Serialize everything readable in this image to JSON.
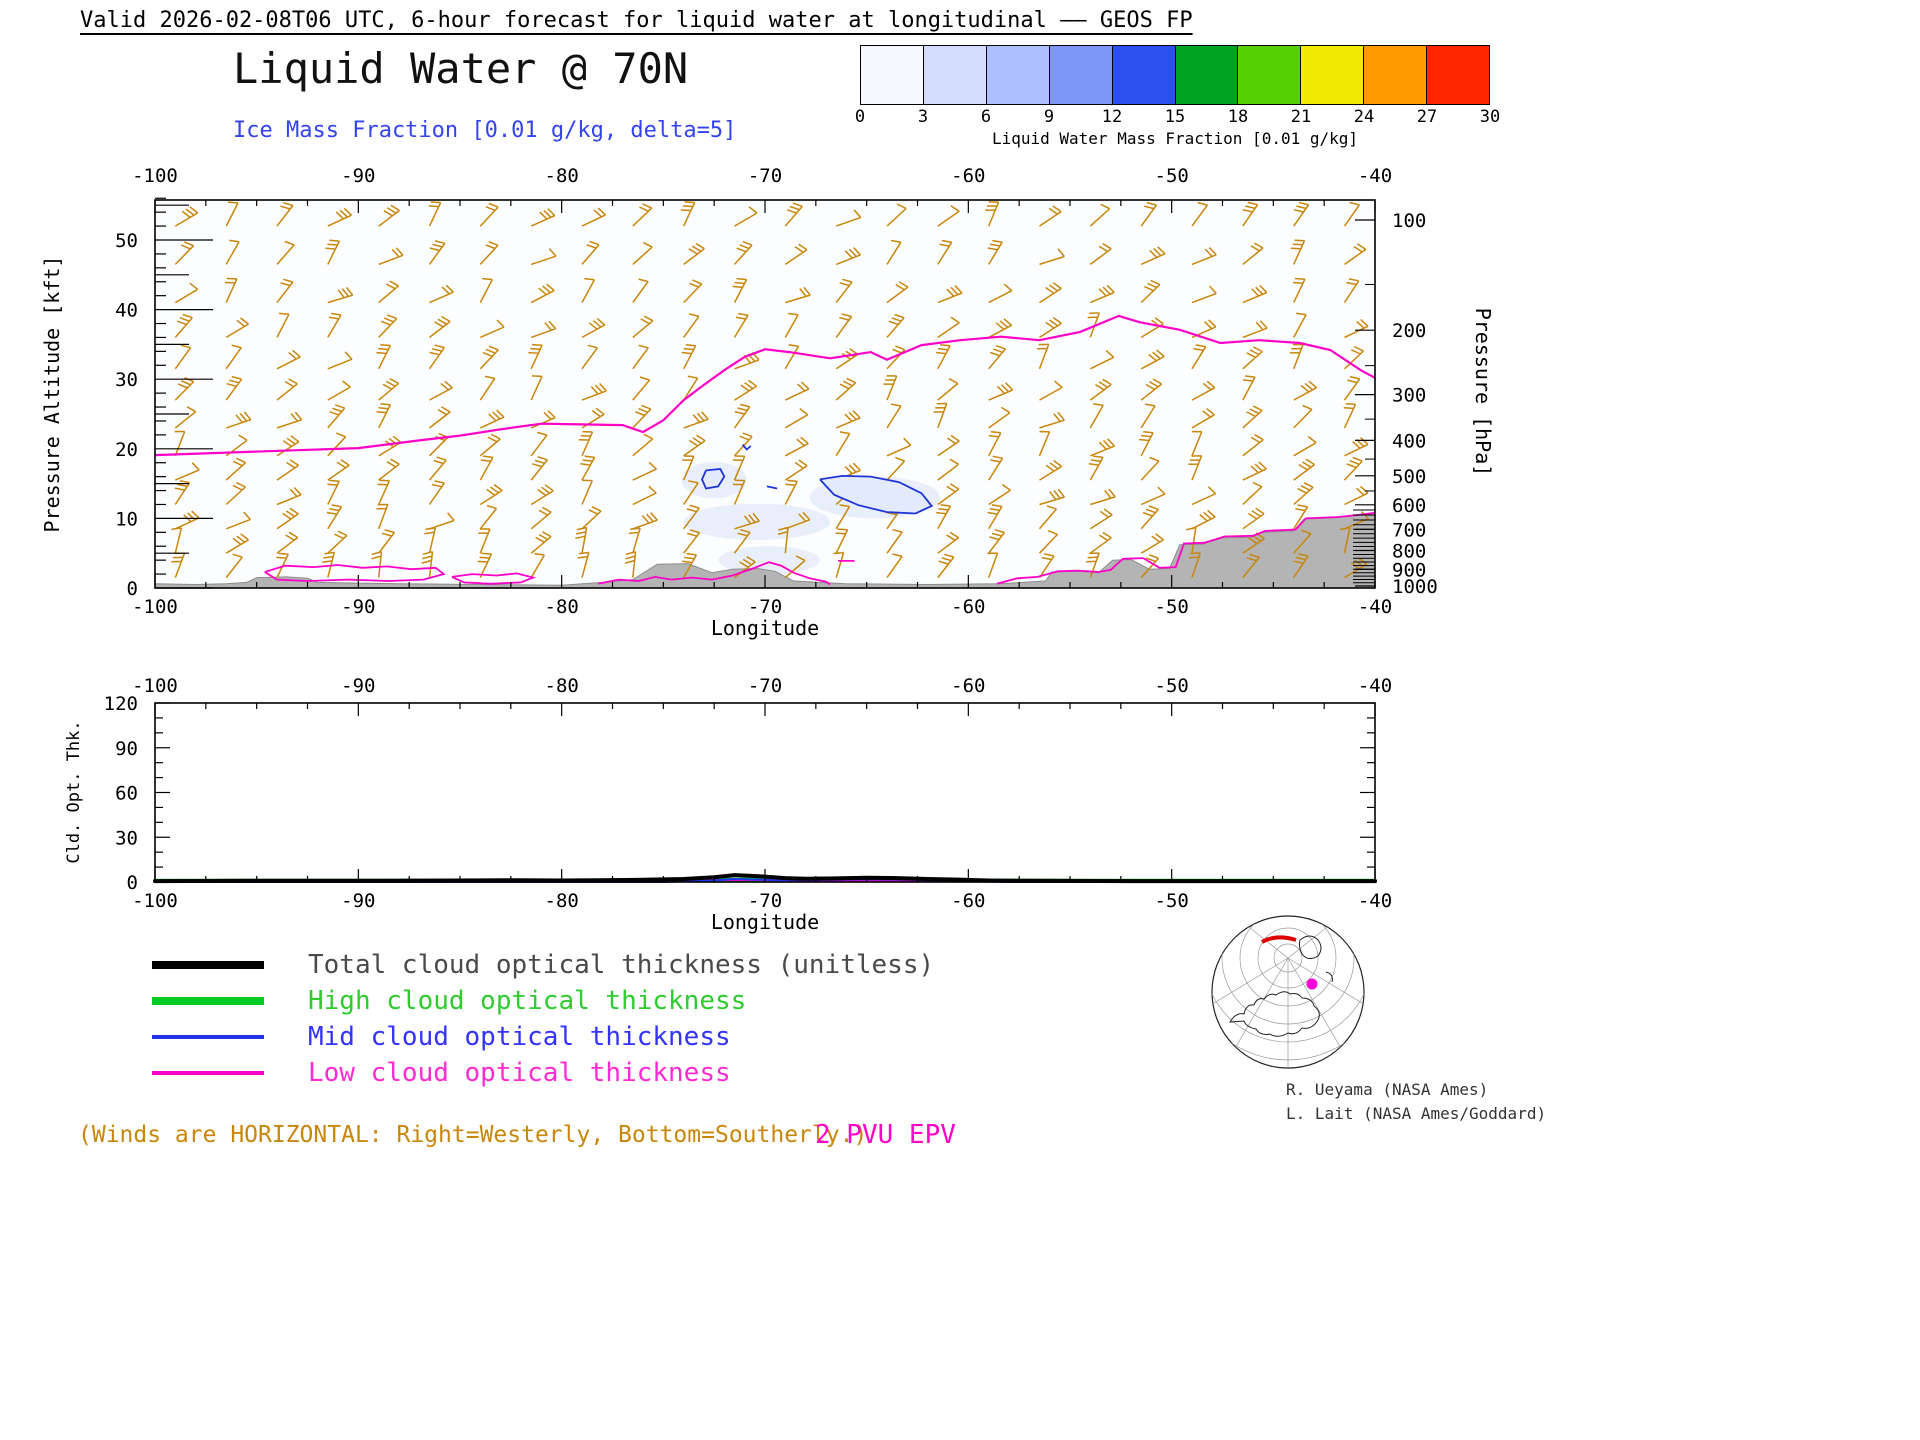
{
  "header": {
    "valid_line": "Valid 2026-02-08T06 UTC, 6-hour forecast for liquid water at longitudinal —— GEOS FP",
    "title": "Liquid Water @ 70N",
    "subtitle": "Ice Mass Fraction [0.01 g/kg, delta=5]",
    "subtitle_color": "#3344ee"
  },
  "colorbar": {
    "caption": "Liquid Water Mass Fraction [0.01 g/kg]",
    "ticks": [
      0,
      3,
      6,
      9,
      12,
      15,
      18,
      21,
      24,
      27,
      30
    ],
    "colors": [
      "#f6f8ff",
      "#d4ddff",
      "#aebfff",
      "#7d97f8",
      "#2c50ef",
      "#00a41e",
      "#55d000",
      "#f2ea00",
      "#ff9b00",
      "#ff2600"
    ]
  },
  "chart_data": [
    {
      "type": "cross_section",
      "title": "Liquid Water @ 70N",
      "xlabel": "Longitude",
      "xlim": [
        -100,
        -40
      ],
      "x_major_ticks": [
        -100,
        -90,
        -80,
        -70,
        -60,
        -50,
        -40
      ],
      "x_minor_step": 2.5,
      "ylabel_left": "Pressure Altitude [kft]",
      "ylim_left_kft": [
        0,
        56
      ],
      "y_major_ticks_left": [
        0,
        10,
        20,
        30,
        40,
        50
      ],
      "ylabel_right": "Pressure [hPa]",
      "y_ticks_right": [
        100,
        200,
        300,
        400,
        500,
        600,
        700,
        800,
        900,
        1000
      ],
      "epv_line_label": "2 PVU EPV",
      "epv_color": "#ff00c8",
      "tropopause_2pvu": [
        [
          -100,
          19.1
        ],
        [
          -97,
          19.4
        ],
        [
          -93,
          19.8
        ],
        [
          -90,
          20.1
        ],
        [
          -87,
          21.2
        ],
        [
          -85,
          21.9
        ],
        [
          -83,
          22.8
        ],
        [
          -81,
          23.6
        ],
        [
          -79,
          23.5
        ],
        [
          -77,
          23.4
        ],
        [
          -76,
          22.4
        ],
        [
          -75,
          24.1
        ],
        [
          -74,
          27.0
        ],
        [
          -73,
          29.2
        ],
        [
          -72,
          31.3
        ],
        [
          -71,
          33.2
        ],
        [
          -70,
          34.3
        ],
        [
          -68.8,
          33.9
        ],
        [
          -66.8,
          33.0
        ],
        [
          -64.8,
          33.9
        ],
        [
          -64,
          32.8
        ],
        [
          -62.3,
          34.9
        ],
        [
          -60.4,
          35.6
        ],
        [
          -58.4,
          36.1
        ],
        [
          -56.5,
          35.6
        ],
        [
          -54.5,
          36.8
        ],
        [
          -52.6,
          39.1
        ],
        [
          -51.6,
          38.2
        ],
        [
          -49.6,
          37.1
        ],
        [
          -47.6,
          35.2
        ],
        [
          -45.7,
          35.6
        ],
        [
          -43.7,
          35.2
        ],
        [
          -42.2,
          34.2
        ],
        [
          -40.7,
          31.3
        ],
        [
          -40,
          30.2
        ]
      ],
      "low_epv_contours": [
        [
          [
            -94.6,
            2.3
          ],
          [
            -93.6,
            3.2
          ],
          [
            -92.2,
            3.0
          ],
          [
            -91.0,
            3.3
          ],
          [
            -89.8,
            2.9
          ],
          [
            -88.6,
            3.1
          ],
          [
            -87.4,
            2.7
          ],
          [
            -86.2,
            2.9
          ],
          [
            -85.8,
            2.0
          ],
          [
            -86.8,
            1.2
          ],
          [
            -88.5,
            1.0
          ],
          [
            -90.5,
            1.2
          ],
          [
            -92.5,
            1.0
          ],
          [
            -94.0,
            1.2
          ],
          [
            -94.6,
            2.3
          ]
        ],
        [
          [
            -85.4,
            1.6
          ],
          [
            -84.4,
            2.0
          ],
          [
            -83.2,
            1.8
          ],
          [
            -82.2,
            2.1
          ],
          [
            -81.4,
            1.5
          ],
          [
            -82.0,
            0.8
          ],
          [
            -83.5,
            0.6
          ],
          [
            -84.8,
            0.8
          ],
          [
            -85.4,
            1.6
          ]
        ],
        [
          [
            -78.2,
            0.6
          ],
          [
            -77.2,
            1.2
          ],
          [
            -76.2,
            1.0
          ],
          [
            -75.4,
            1.6
          ],
          [
            -74.6,
            1.2
          ],
          [
            -73.6,
            1.5
          ],
          [
            -72.6,
            1.2
          ],
          [
            -71.6,
            1.8
          ],
          [
            -70.6,
            2.8
          ],
          [
            -69.8,
            3.7
          ],
          [
            -69.2,
            3.2
          ],
          [
            -68.6,
            2.2
          ],
          [
            -67.8,
            1.4
          ],
          [
            -67.0,
            0.9
          ],
          [
            -66.8,
            0.5
          ]
        ],
        [
          [
            -66.4,
            3.9
          ],
          [
            -65.6,
            3.9
          ]
        ],
        [
          [
            -58.6,
            0.6
          ],
          [
            -57.6,
            1.4
          ],
          [
            -56.6,
            1.6
          ],
          [
            -55.6,
            2.4
          ],
          [
            -54.6,
            2.5
          ],
          [
            -53.6,
            2.3
          ],
          [
            -53.0,
            2.6
          ],
          [
            -52.4,
            4.2
          ],
          [
            -51.4,
            4.3
          ],
          [
            -50.6,
            2.9
          ],
          [
            -49.8,
            3.0
          ],
          [
            -49.4,
            6.4
          ],
          [
            -48.4,
            6.5
          ],
          [
            -47.4,
            7.4
          ],
          [
            -46.0,
            7.5
          ],
          [
            -45.4,
            8.2
          ],
          [
            -43.9,
            8.4
          ],
          [
            -43.4,
            10.0
          ],
          [
            -41.8,
            10.2
          ],
          [
            -40.8,
            10.5
          ],
          [
            -40.0,
            10.8
          ]
        ]
      ],
      "ice_contour_color": "#1e35d8",
      "ice_contours": [
        [
          [
            -72.9,
            16.9
          ],
          [
            -72.2,
            17.1
          ],
          [
            -72.0,
            16.0
          ],
          [
            -72.3,
            14.6
          ],
          [
            -72.9,
            14.3
          ],
          [
            -73.1,
            15.6
          ],
          [
            -72.9,
            16.9
          ]
        ],
        [
          [
            -71.1,
            20.6
          ],
          [
            -70.9,
            19.9
          ],
          [
            -70.7,
            20.4
          ]
        ],
        [
          [
            -69.9,
            14.6
          ],
          [
            -69.4,
            14.3
          ]
        ],
        [
          [
            -67.3,
            15.6
          ],
          [
            -66.2,
            16.1
          ],
          [
            -64.8,
            16.0
          ],
          [
            -63.4,
            15.2
          ],
          [
            -62.3,
            13.6
          ],
          [
            -61.8,
            11.8
          ],
          [
            -62.6,
            10.7
          ],
          [
            -64.0,
            10.9
          ],
          [
            -65.4,
            11.9
          ],
          [
            -66.6,
            13.4
          ],
          [
            -67.3,
            15.6
          ]
        ]
      ],
      "cloud_shading": [
        {
          "lon": -70.4,
          "kft": 9.5,
          "rlon": 3.6,
          "rkft": 2.6
        },
        {
          "lon": -64.6,
          "kft": 13.0,
          "rlon": 3.2,
          "rkft": 3.0
        },
        {
          "lon": -72.5,
          "kft": 15.5,
          "rlon": 1.6,
          "rkft": 2.6
        },
        {
          "lon": -69.8,
          "kft": 4.0,
          "rlon": 2.5,
          "rkft": 2.0
        }
      ],
      "terrain": [
        [
          -100,
          0.6
        ],
        [
          -98,
          0.5
        ],
        [
          -96.5,
          0.6
        ],
        [
          -95.5,
          0.8
        ],
        [
          -95,
          1.5
        ],
        [
          -93.5,
          1.6
        ],
        [
          -92.5,
          1.4
        ],
        [
          -92,
          0.8
        ],
        [
          -90,
          0.7
        ],
        [
          -88,
          0.6
        ],
        [
          -84,
          0.5
        ],
        [
          -80,
          0.4
        ],
        [
          -78,
          0.8
        ],
        [
          -76.5,
          1.2
        ],
        [
          -75.3,
          3.4
        ],
        [
          -73.8,
          3.5
        ],
        [
          -72.6,
          2.2
        ],
        [
          -71.6,
          2.7
        ],
        [
          -70.4,
          2.8
        ],
        [
          -69.5,
          2.4
        ],
        [
          -68.6,
          1.0
        ],
        [
          -66,
          0.6
        ],
        [
          -62,
          0.5
        ],
        [
          -58.5,
          0.6
        ],
        [
          -56.2,
          1.0
        ],
        [
          -55.9,
          2.3
        ],
        [
          -54.6,
          2.4
        ],
        [
          -53.6,
          2.2
        ],
        [
          -52.9,
          4.0
        ],
        [
          -52.0,
          4.1
        ],
        [
          -51.1,
          2.7
        ],
        [
          -50.1,
          2.8
        ],
        [
          -49.6,
          6.2
        ],
        [
          -48.5,
          6.3
        ],
        [
          -47.5,
          7.2
        ],
        [
          -46.1,
          7.3
        ],
        [
          -45.5,
          8.0
        ],
        [
          -44.0,
          8.2
        ],
        [
          -43.5,
          9.9
        ],
        [
          -42.0,
          10.1
        ],
        [
          -41.0,
          10.4
        ],
        [
          -40.0,
          10.8
        ]
      ],
      "terrain_color": "#b4b4b4",
      "wind_barbs": {
        "color": "#c8860a",
        "lon_min": -99,
        "lon_max": -41,
        "lon_step": 2.5,
        "levels_kft": [
          1.5,
          5,
          8.5,
          12,
          15.5,
          19,
          23,
          27,
          31.5,
          36,
          41,
          46.5,
          52
        ]
      }
    },
    {
      "type": "line",
      "xlabel": "Longitude",
      "ylabel": "Cld. Opt. Thk.",
      "xlim": [
        -100,
        -40
      ],
      "x_major_ticks": [
        -100,
        -90,
        -80,
        -70,
        -60,
        -50,
        -40
      ],
      "ylim": [
        0,
        120
      ],
      "y_major_ticks": [
        0,
        30,
        60,
        90,
        120
      ],
      "series": [
        {
          "name": "Total cloud optical thickness (unitless)",
          "color": "#000000",
          "label_color": "#4a4a4a",
          "width": 4,
          "points": [
            [
              -100,
              0.6
            ],
            [
              -95,
              0.8
            ],
            [
              -90,
              0.8
            ],
            [
              -85,
              1.0
            ],
            [
              -82,
              1.2
            ],
            [
              -80,
              1.0
            ],
            [
              -78,
              1.2
            ],
            [
              -76,
              1.5
            ],
            [
              -74,
              2.0
            ],
            [
              -72.5,
              3.2
            ],
            [
              -71.5,
              4.6
            ],
            [
              -70.8,
              4.2
            ],
            [
              -70,
              3.6
            ],
            [
              -69,
              2.6
            ],
            [
              -68,
              2.2
            ],
            [
              -66.5,
              2.4
            ],
            [
              -65,
              2.8
            ],
            [
              -63.5,
              2.6
            ],
            [
              -62,
              2.0
            ],
            [
              -60.5,
              1.6
            ],
            [
              -59,
              1.0
            ],
            [
              -57,
              0.8
            ],
            [
              -52,
              0.6
            ],
            [
              -46,
              0.6
            ],
            [
              -40,
              0.6
            ]
          ]
        },
        {
          "name": "High cloud optical thickness",
          "color": "#00cc22",
          "label_color": "#2ecc2e",
          "width": 4,
          "points": [
            [
              -100,
              0.8
            ],
            [
              -92,
              0.8
            ],
            [
              -86,
              0.9
            ],
            [
              -80,
              1.0
            ],
            [
              -75,
              1.2
            ],
            [
              -71,
              1.6
            ],
            [
              -68,
              1.4
            ],
            [
              -64,
              1.3
            ],
            [
              -60,
              1.0
            ],
            [
              -54,
              0.8
            ],
            [
              -47,
              0.8
            ],
            [
              -40,
              0.8
            ]
          ]
        },
        {
          "name": "Mid cloud optical thickness",
          "color": "#2233ee",
          "label_color": "#3333ff",
          "width": 2,
          "points": [
            [
              -100,
              0.0
            ],
            [
              -75,
              0.0
            ],
            [
              -72.5,
              1.0
            ],
            [
              -71.5,
              2.0
            ],
            [
              -70.5,
              1.6
            ],
            [
              -69,
              1.2
            ],
            [
              -67,
              1.4
            ],
            [
              -65,
              1.8
            ],
            [
              -63,
              1.6
            ],
            [
              -61.5,
              1.0
            ],
            [
              -60,
              0.4
            ],
            [
              -58,
              0.0
            ],
            [
              -40,
              0.0
            ]
          ]
        },
        {
          "name": "Low cloud optical thickness",
          "color": "#ff00c8",
          "label_color": "#ff2ad4",
          "width": 2,
          "points": [
            [
              -100,
              0.0
            ],
            [
              -92,
              0.2
            ],
            [
              -89,
              0.8
            ],
            [
              -86,
              0.7
            ],
            [
              -83,
              0.4
            ],
            [
              -80,
              0.6
            ],
            [
              -78,
              1.0
            ],
            [
              -76,
              0.8
            ],
            [
              -73,
              1.2
            ],
            [
              -71,
              1.4
            ],
            [
              -69,
              1.0
            ],
            [
              -66,
              0.8
            ],
            [
              -63,
              1.0
            ],
            [
              -60,
              0.8
            ],
            [
              -58,
              0.4
            ],
            [
              -55,
              0.2
            ],
            [
              -50,
              0.1
            ],
            [
              -44,
              0.1
            ],
            [
              -40,
              0.0
            ]
          ]
        }
      ]
    }
  ],
  "annotations": {
    "winds_note": {
      "text": "(Winds are HORIZONTAL: Right=Westerly, Bottom=Southerly.)",
      "color": "#c8860a"
    },
    "epv_note": {
      "text": "2 PVU EPV",
      "color": "#ff00c8"
    }
  },
  "credits": [
    "R. Ueyama (NASA Ames)",
    "L. Lait (NASA Ames/Goddard)"
  ]
}
